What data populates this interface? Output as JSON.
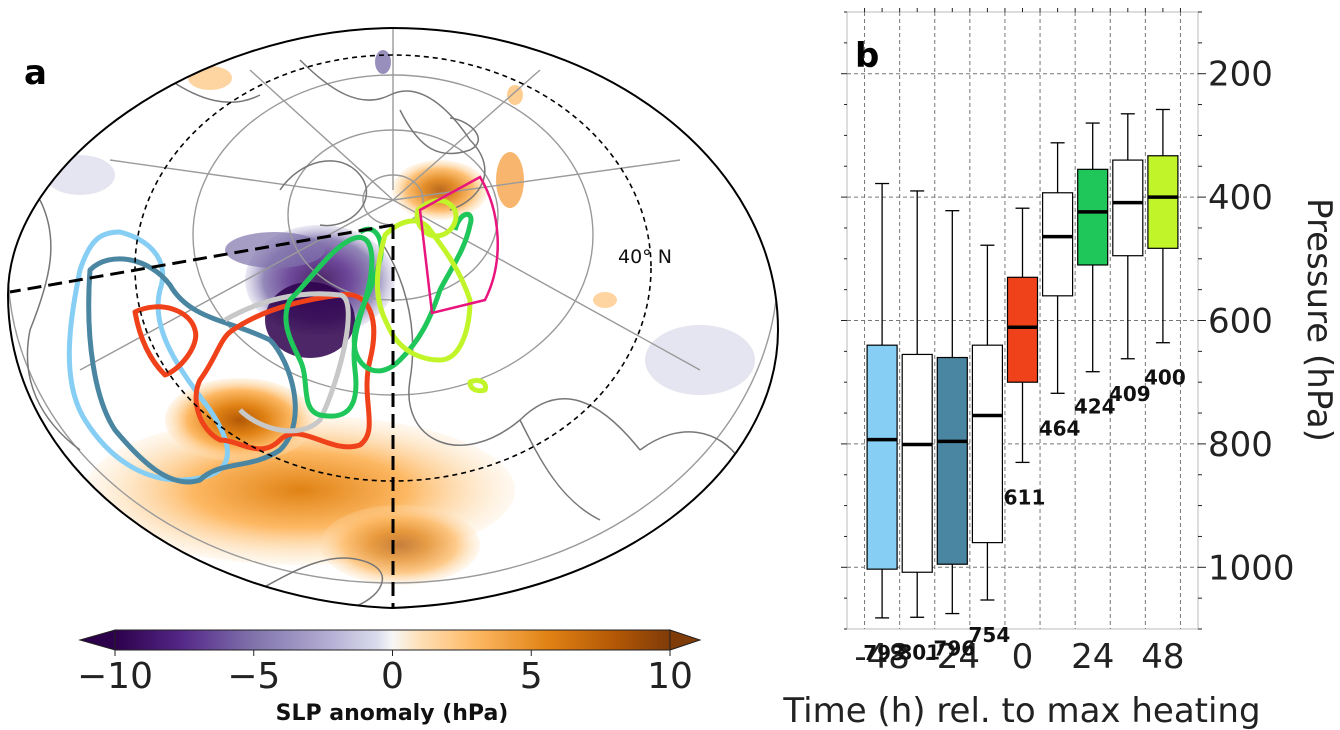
{
  "panel_a": {
    "label": "a",
    "lat_label": "40° N",
    "colorbar": {
      "label": "SLP anomaly (hPa)",
      "ticks": [
        "−10",
        "−5",
        "0",
        "5",
        "10"
      ],
      "range": [
        -10,
        10
      ],
      "colormap": "PuOr_r",
      "low_color": "#2d004b",
      "mid_color": "#f7f7f7",
      "high_color": "#7f3b08"
    }
  },
  "chart_data": {
    "type": "box",
    "label": "b",
    "xlabel": "Time (h) rel. to max heating",
    "ylabel": "Pressure (hPa)",
    "ylim": [
      1100,
      100
    ],
    "yticks": [
      "200",
      "400",
      "600",
      "800",
      "1000"
    ],
    "xticks": [
      "-48",
      "-24",
      "0",
      "24",
      "48"
    ],
    "grid": true,
    "series": [
      {
        "time": -48,
        "q1": 640,
        "median": 793,
        "q3": 1003,
        "whisker_low": 378,
        "whisker_high": 1082,
        "count": "793",
        "color": "#87cef5"
      },
      {
        "time": -36,
        "q1": 655,
        "median": 801,
        "q3": 1008,
        "whisker_low": 390,
        "whisker_high": 1081,
        "count": "801",
        "color": "#ffffff"
      },
      {
        "time": -24,
        "q1": 660,
        "median": 796,
        "q3": 995,
        "whisker_low": 422,
        "whisker_high": 1075,
        "count": "796",
        "color": "#4a86a2"
      },
      {
        "time": -12,
        "q1": 640,
        "median": 754,
        "q3": 960,
        "whisker_low": 478,
        "whisker_high": 1053,
        "count": "754",
        "color": "#ffffff"
      },
      {
        "time": 0,
        "q1": 530,
        "median": 611,
        "q3": 700,
        "whisker_low": 418,
        "whisker_high": 830,
        "count": "611",
        "color": "#f0421a"
      },
      {
        "time": 12,
        "q1": 393,
        "median": 464,
        "q3": 560,
        "whisker_low": 312,
        "whisker_high": 718,
        "count": "464",
        "color": "#ffffff"
      },
      {
        "time": 24,
        "q1": 355,
        "median": 424,
        "q3": 510,
        "whisker_low": 280,
        "whisker_high": 683,
        "count": "424",
        "color": "#1fc65a"
      },
      {
        "time": 36,
        "q1": 340,
        "median": 409,
        "q3": 495,
        "whisker_low": 265,
        "whisker_high": 662,
        "count": "409",
        "color": "#ffffff"
      },
      {
        "time": 48,
        "q1": 333,
        "median": 400,
        "q3": 483,
        "whisker_low": 258,
        "whisker_high": 636,
        "count": "400",
        "color": "#c1f52a"
      }
    ]
  }
}
